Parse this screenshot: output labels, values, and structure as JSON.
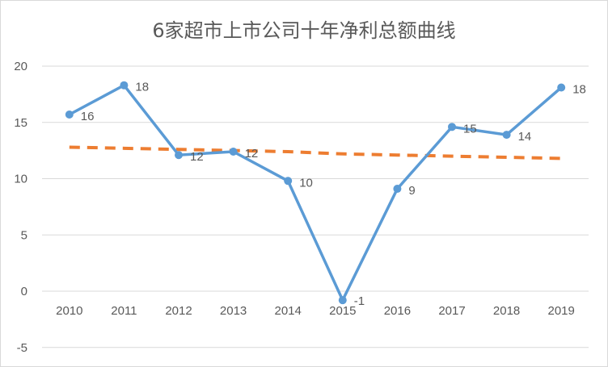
{
  "chart_data": {
    "type": "line",
    "title": "6家超市上市公司十年净利总额曲线",
    "categories": [
      "2010",
      "2011",
      "2012",
      "2013",
      "2014",
      "2015",
      "2016",
      "2017",
      "2018",
      "2019"
    ],
    "series": [
      {
        "values": [
          15.7,
          18.3,
          12.1,
          12.4,
          9.8,
          -0.8,
          9.1,
          14.6,
          13.9,
          18.1
        ],
        "data_labels": [
          "16",
          "18",
          "12",
          "12",
          "10",
          "-1",
          "9",
          "15",
          "14",
          "18"
        ],
        "color": "#5b9bd5",
        "style": "solid-with-markers"
      },
      {
        "values": [
          12.8,
          12.7,
          12.6,
          12.5,
          12.4,
          12.2,
          12.1,
          12.0,
          11.9,
          11.8
        ],
        "color": "#ed7d31",
        "style": "dashed-trendline"
      }
    ],
    "ylim": [
      -5,
      20
    ],
    "yticks": [
      -5,
      0,
      5,
      10,
      15,
      20
    ],
    "grid": true,
    "legend": "none",
    "xlabel": "",
    "ylabel": ""
  }
}
